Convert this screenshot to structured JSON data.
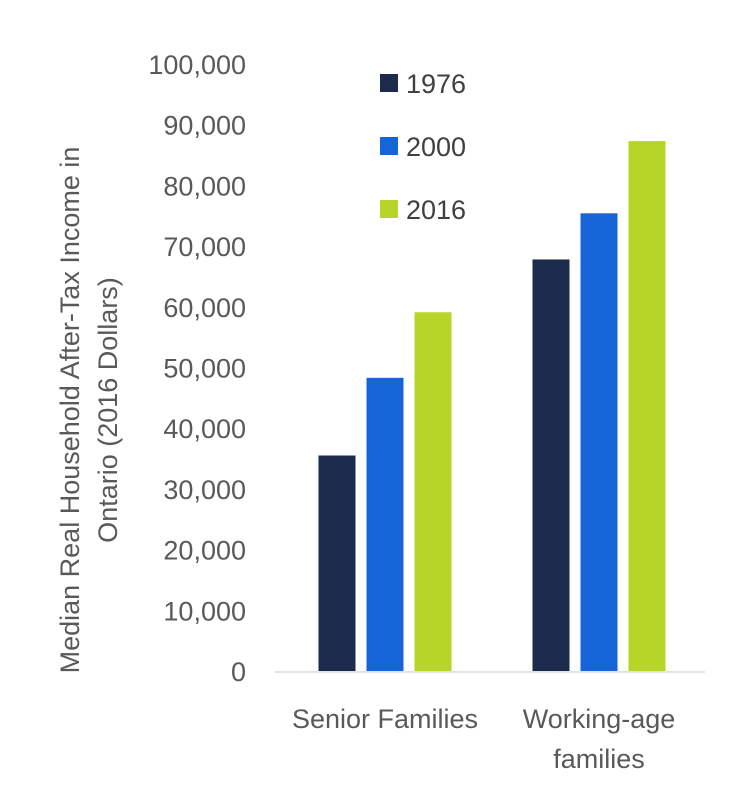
{
  "chart_data": {
    "type": "bar",
    "ylabel_lines": [
      "Median Real Household After-Tax Income in",
      "Ontario (2016 Dollars)"
    ],
    "ylim": [
      0,
      100000
    ],
    "yticks": [
      "0",
      "10,000",
      "20,000",
      "30,000",
      "40,000",
      "50,000",
      "60,000",
      "70,000",
      "80,000",
      "90,000",
      "100,000"
    ],
    "categories": [
      {
        "lines": [
          "Senior Families"
        ]
      },
      {
        "lines": [
          "Working-age",
          "families"
        ]
      }
    ],
    "series": [
      {
        "name": "1976",
        "color": "#1c2b4b",
        "values": [
          35500,
          67800
        ]
      },
      {
        "name": "2000",
        "color": "#1565d8",
        "values": [
          48300,
          75400
        ]
      },
      {
        "name": "2016",
        "color": "#b5d629",
        "values": [
          59100,
          87300
        ]
      }
    ],
    "legend_position": "top-center",
    "grid": false
  }
}
